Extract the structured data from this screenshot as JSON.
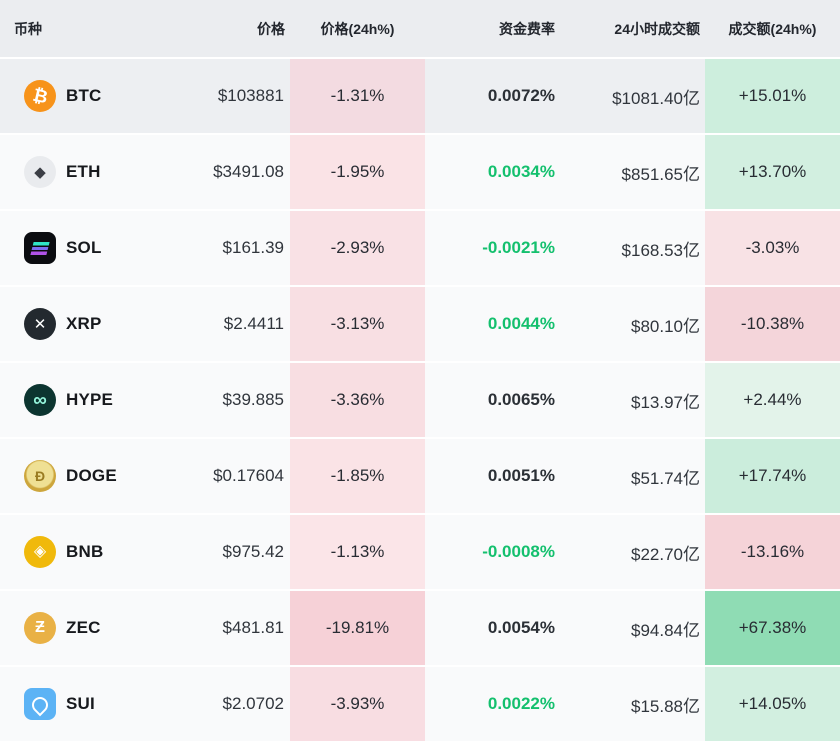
{
  "colors": {
    "header_bg": "#ebedf0",
    "row_bg": "#f9fafb",
    "row_bg_highlight": "#edeff2",
    "green_text": "#14c06e",
    "dark_text": "#2b3036"
  },
  "table": {
    "columns": [
      "币种",
      "价格",
      "价格(24h%)",
      "资金费率",
      "24小时成交额",
      "成交额(24h%)"
    ],
    "rows": [
      {
        "symbol": "BTC",
        "icon": "btc",
        "icon_glyph": "₿",
        "price": "$103881",
        "price_change": "-1.31%",
        "price_change_bg": "#f3dbe1",
        "funding": "0.0072%",
        "funding_color": "dark",
        "volume": "$1081.40亿",
        "vol_change": "+15.01%",
        "vol_change_bg": "#cdeedd",
        "row_bg": "#edeff2"
      },
      {
        "symbol": "ETH",
        "icon": "eth",
        "icon_glyph": "◆",
        "price": "$3491.08",
        "price_change": "-1.95%",
        "price_change_bg": "#fae3e6",
        "funding": "0.0034%",
        "funding_color": "green",
        "volume": "$851.65亿",
        "vol_change": "+13.70%",
        "vol_change_bg": "#d2efe0",
        "row_bg": ""
      },
      {
        "symbol": "SOL",
        "icon": "sol",
        "icon_glyph": "",
        "price": "$161.39",
        "price_change": "-2.93%",
        "price_change_bg": "#f9e1e5",
        "funding": "-0.0021%",
        "funding_color": "green",
        "volume": "$168.53亿",
        "vol_change": "-3.03%",
        "vol_change_bg": "#f8e2e5",
        "row_bg": ""
      },
      {
        "symbol": "XRP",
        "icon": "xrp",
        "icon_glyph": "✕",
        "price": "$2.4411",
        "price_change": "-3.13%",
        "price_change_bg": "#f8dfe3",
        "funding": "0.0044%",
        "funding_color": "green",
        "volume": "$80.10亿",
        "vol_change": "-10.38%",
        "vol_change_bg": "#f4d5da",
        "row_bg": ""
      },
      {
        "symbol": "HYPE",
        "icon": "hype",
        "icon_glyph": "∞",
        "price": "$39.885",
        "price_change": "-3.36%",
        "price_change_bg": "#f8dee2",
        "funding": "0.0065%",
        "funding_color": "dark",
        "volume": "$13.97亿",
        "vol_change": "+2.44%",
        "vol_change_bg": "#e3f3ea",
        "row_bg": ""
      },
      {
        "symbol": "DOGE",
        "icon": "doge",
        "icon_glyph": "Ð",
        "price": "$0.17604",
        "price_change": "-1.85%",
        "price_change_bg": "#fae3e6",
        "funding": "0.0051%",
        "funding_color": "dark",
        "volume": "$51.74亿",
        "vol_change": "+17.74%",
        "vol_change_bg": "#cbeddc",
        "row_bg": ""
      },
      {
        "symbol": "BNB",
        "icon": "bnb",
        "icon_glyph": "◈",
        "price": "$975.42",
        "price_change": "-1.13%",
        "price_change_bg": "#fbe5e8",
        "funding": "-0.0008%",
        "funding_color": "green",
        "volume": "$22.70亿",
        "vol_change": "-13.16%",
        "vol_change_bg": "#f5d3d8",
        "row_bg": ""
      },
      {
        "symbol": "ZEC",
        "icon": "zec",
        "icon_glyph": "Ƶ",
        "price": "$481.81",
        "price_change": "-19.81%",
        "price_change_bg": "#f6d1d7",
        "funding": "0.0054%",
        "funding_color": "dark",
        "volume": "$94.84亿",
        "vol_change": "+67.38%",
        "vol_change_bg": "#8fdcb4",
        "row_bg": ""
      },
      {
        "symbol": "SUI",
        "icon": "sui",
        "icon_glyph": "",
        "price": "$2.0702",
        "price_change": "-3.93%",
        "price_change_bg": "#f8dde2",
        "funding": "0.0022%",
        "funding_color": "green",
        "volume": "$15.88亿",
        "vol_change": "+14.05%",
        "vol_change_bg": "#d2efe0",
        "row_bg": ""
      }
    ]
  }
}
